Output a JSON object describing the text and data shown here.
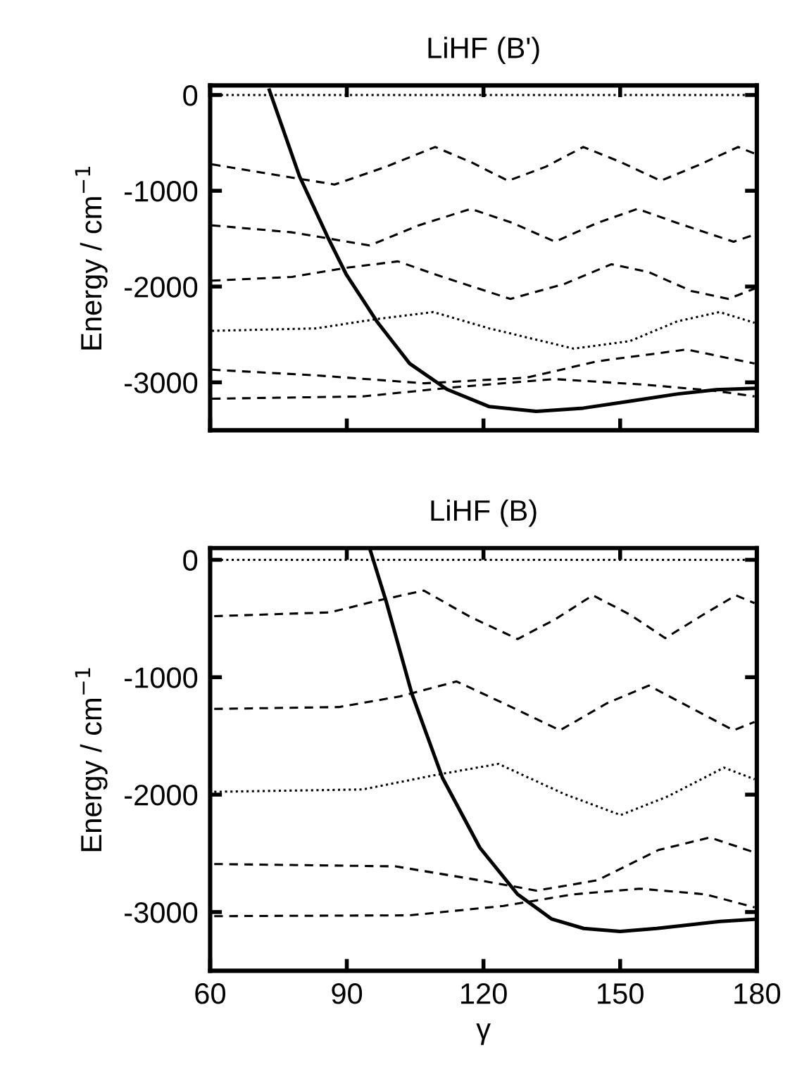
{
  "chart_data": [
    {
      "type": "line",
      "title": "LiHF (B')",
      "ylabel": "Energy / cm$^{−1}$",
      "xlim": [
        60,
        180
      ],
      "xticks": [
        {
          "value": 60,
          "label": null
        },
        {
          "value": 90,
          "label": null
        },
        {
          "value": 120,
          "label": null
        },
        {
          "value": 150,
          "label": null
        },
        {
          "value": 180,
          "label": null
        }
      ],
      "ylim": [
        -3500,
        100
      ],
      "yticks": [
        {
          "value": 0,
          "label": "0"
        },
        {
          "value": -1000,
          "label": "-1000"
        },
        {
          "value": -2000,
          "label": "-2000"
        },
        {
          "value": -3000,
          "label": "-3000"
        }
      ],
      "tick_labels": "y",
      "grid": false,
      "legend": false,
      "series": [
        {
          "color": "#000000",
          "line_style": "solid",
          "x": [
            73,
            79.6,
            85.8,
            89.9,
            96.6,
            103.8,
            112,
            121.3,
            131.6,
            141.9,
            152.2,
            162.5,
            170.7,
            179.5
          ],
          "values": [
            50,
            -847,
            -1483,
            -1874,
            -2364,
            -2804,
            -3073,
            -3254,
            -3303,
            -3269,
            -3196,
            -3122,
            -3078,
            -3063
          ]
        },
        {
          "color": "#000000",
          "line_style": "dotted",
          "x": [
            60,
            180
          ],
          "values": [
            0,
            0
          ]
        },
        {
          "color": "#000000",
          "line_style": "dashed",
          "x": [
            60.4,
            72.9,
            87.3,
            98.6,
            109.4,
            117.2,
            125.4,
            133.7,
            141.9,
            150.1,
            158.9,
            167.6,
            175.9,
            179.5
          ],
          "values": [
            -724,
            -822,
            -935,
            -749,
            -543,
            -700,
            -896,
            -749,
            -543,
            -700,
            -896,
            -724,
            -543,
            -612
          ]
        },
        {
          "color": "#000000",
          "line_style": "dashed",
          "x": [
            60.4,
            78,
            95,
            105.8,
            117.2,
            126.4,
            135.7,
            145,
            153.8,
            162.5,
            174.9,
            179.5
          ],
          "values": [
            -1361,
            -1434,
            -1571,
            -1361,
            -1189,
            -1336,
            -1532,
            -1336,
            -1189,
            -1336,
            -1532,
            -1458
          ]
        },
        {
          "color": "#000000",
          "line_style": "dashed",
          "x": [
            60.4,
            78,
            90.4,
            101.2,
            111,
            125.9,
            137.8,
            148.1,
            156.3,
            165.6,
            173.8,
            179.5
          ],
          "values": [
            -1938,
            -1899,
            -1801,
            -1737,
            -1899,
            -2129,
            -1972,
            -1767,
            -1850,
            -2046,
            -2129,
            -2021
          ]
        },
        {
          "color": "#000000",
          "line_style": "dotted",
          "x": [
            60.4,
            83.2,
            96.6,
            109,
            121.3,
            139.8,
            152.2,
            162.5,
            171.8,
            179.5
          ],
          "values": [
            -2462,
            -2437,
            -2339,
            -2266,
            -2437,
            -2648,
            -2569,
            -2364,
            -2266,
            -2378
          ]
        },
        {
          "color": "#000000",
          "line_style": "dashed",
          "x": [
            60.4,
            83.2,
            107,
            129.5,
            145,
            164.6,
            179.5
          ],
          "values": [
            -2868,
            -2927,
            -3010,
            -2951,
            -2780,
            -2657,
            -2804
          ]
        },
        {
          "color": "#000000",
          "line_style": "dashed",
          "x": [
            60.4,
            93.5,
            114.1,
            135.7,
            155.3,
            170.7,
            179.5
          ],
          "values": [
            -3171,
            -3147,
            -3049,
            -2966,
            -3024,
            -3088,
            -3147
          ]
        }
      ]
    },
    {
      "type": "line",
      "title": "LiHF (B)",
      "xlabel": "γ",
      "ylabel": "Energy / cm$^{−1}$",
      "xlim": [
        60,
        180
      ],
      "xticks": [
        60,
        90,
        120,
        150,
        180
      ],
      "ylim": [
        -3500,
        100
      ],
      "yticks": [
        {
          "value": 0,
          "label": "0"
        },
        {
          "value": -1000,
          "label": "-1000"
        },
        {
          "value": -2000,
          "label": "-2000"
        },
        {
          "value": -3000,
          "label": "-3000"
        }
      ],
      "grid": false,
      "legend": false,
      "series": [
        {
          "color": "#000000",
          "line_style": "solid",
          "x": [
            95,
            98.6,
            104.3,
            111,
            119.2,
            127.5,
            135,
            142,
            150,
            158,
            165,
            172,
            180
          ],
          "values": [
            100,
            -349,
            -1143,
            -1857,
            -2452,
            -2849,
            -3060,
            -3140,
            -3165,
            -3140,
            -3110,
            -3080,
            -3060
          ]
        },
        {
          "color": "#000000",
          "line_style": "dotted",
          "x": [
            60,
            180
          ],
          "values": [
            0,
            0
          ]
        },
        {
          "color": "#000000",
          "line_style": "dashed",
          "x": [
            60.9,
            86.3,
            96.6,
            106.9,
            117.2,
            127.5,
            135.7,
            144,
            152.2,
            159.9,
            168.2,
            175.4,
            179.5
          ],
          "values": [
            -480,
            -448,
            -349,
            -262,
            -488,
            -675,
            -508,
            -302,
            -468,
            -667,
            -468,
            -302,
            -369
          ]
        },
        {
          "color": "#000000",
          "line_style": "dashed",
          "x": [
            60.9,
            88.3,
            101.7,
            114.1,
            124.4,
            136.8,
            147.1,
            156.3,
            165.6,
            174.9,
            179.5
          ],
          "values": [
            -1270,
            -1254,
            -1163,
            -1036,
            -1222,
            -1452,
            -1222,
            -1071,
            -1262,
            -1452,
            -1381
          ]
        },
        {
          "color": "#000000",
          "line_style": "dotted",
          "x": [
            60.9,
            93.5,
            108.9,
            123.3,
            137.8,
            150.1,
            160.4,
            172.8,
            179.5
          ],
          "values": [
            -1976,
            -1956,
            -1837,
            -1738,
            -1996,
            -2174,
            -2016,
            -1770,
            -1869
          ]
        },
        {
          "color": "#000000",
          "line_style": "dashed",
          "x": [
            60.9,
            100.7,
            119.2,
            131.6,
            145,
            158.4,
            169.7,
            179.5
          ],
          "values": [
            -2591,
            -2611,
            -2730,
            -2817,
            -2730,
            -2472,
            -2365,
            -2492
          ]
        },
        {
          "color": "#000000",
          "line_style": "dashed",
          "x": [
            60.9,
            103.8,
            124.4,
            139.8,
            154.3,
            168.7,
            179.5
          ],
          "values": [
            -3035,
            -3028,
            -2948,
            -2849,
            -2801,
            -2849,
            -2960
          ]
        }
      ]
    }
  ]
}
